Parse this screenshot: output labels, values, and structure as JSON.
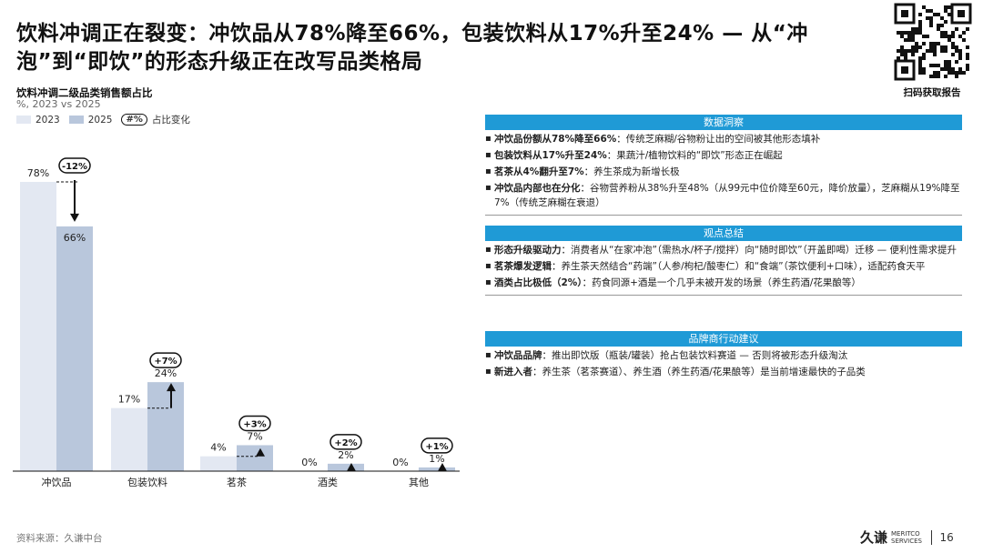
{
  "title": "饮料冲调正在裂变：冲饮品从78%降至66%，包装饮料从17%升至24% — 从“冲泡”到“即饮”的形态升级正在改写品类格局",
  "qr_caption": "扫码获取报告",
  "chart_data": {
    "type": "bar",
    "title": "饮料冲调二级品类销售额占比",
    "subtitle": "%, 2023 vs 2025",
    "categories": [
      "冲饮品",
      "包装饮料",
      "茗茶",
      "酒类",
      "其他"
    ],
    "series": [
      {
        "name": "2023",
        "values": [
          78,
          17,
          4,
          0,
          0
        ],
        "labels": [
          "78%",
          "17%",
          "4%",
          "0%",
          "0%"
        ],
        "color": "#e3e8f2"
      },
      {
        "name": "2025",
        "values": [
          66,
          24,
          7,
          2,
          1
        ],
        "labels": [
          "66%",
          "24%",
          "7%",
          "2%",
          "1%"
        ],
        "color": "#b9c7dc"
      }
    ],
    "changes": [
      "-12%",
      "+7%",
      "+3%",
      "+2%",
      "+1%"
    ],
    "change_legend_symbol": "#%",
    "change_legend_label": "占比变化",
    "ylim": [
      0,
      100
    ],
    "grid": false,
    "legend": "top-left"
  },
  "sections": [
    {
      "heading": "数据洞察",
      "bullets": [
        {
          "bold": "冲饮品份额从78%降至66%",
          "text": "：传统芝麻糊/谷物粉让出的空间被其他形态填补"
        },
        {
          "bold": "包装饮料从17%升至24%",
          "text": "：果蔬汁/植物饮料的“即饮”形态正在崛起"
        },
        {
          "bold": "茗茶从4%翻升至7%",
          "text": "：养生茶成为新增长极"
        },
        {
          "bold": "冲饮品内部也在分化",
          "text": "：谷物营养粉从38%升至48%（从99元中位价降至60元，降价放量），芝麻糊从19%降至7%（传统芝麻糊在衰退）"
        }
      ]
    },
    {
      "heading": "观点总结",
      "bullets": [
        {
          "bold": "形态升级驱动力",
          "text": "：消费者从“在家冲泡”（需热水/杯子/搅拌）向“随时即饮”（开盖即喝）迁移 — 便利性需求提升"
        },
        {
          "bold": "茗茶爆发逻辑",
          "text": "：养生茶天然结合“药端”（人参/枸杞/酸枣仁）和“食端”（茶饮便利+口味），适配药食天平"
        },
        {
          "bold": "酒类占比极低（2%）",
          "text": "：药食同源+酒是一个几乎未被开发的场景（养生药酒/花果酿等）"
        }
      ]
    },
    {
      "heading": "品牌商行动建议",
      "bullets": [
        {
          "bold": "冲饮品品牌",
          "text": "：推出即饮版（瓶装/罐装）抢占包装饮料赛道 — 否则将被形态升级淘汰"
        },
        {
          "bold": "新进入者",
          "text": "：养生茶（茗茶赛道）、养生酒（养生药酒/花果酿等）是当前增速最快的子品类"
        }
      ]
    }
  ],
  "footer": {
    "source": "资料来源：久谦中台",
    "logo_cn": "久谦",
    "logo_en_1": "MERITCO",
    "logo_en_2": "SERVICES",
    "page": "16"
  }
}
